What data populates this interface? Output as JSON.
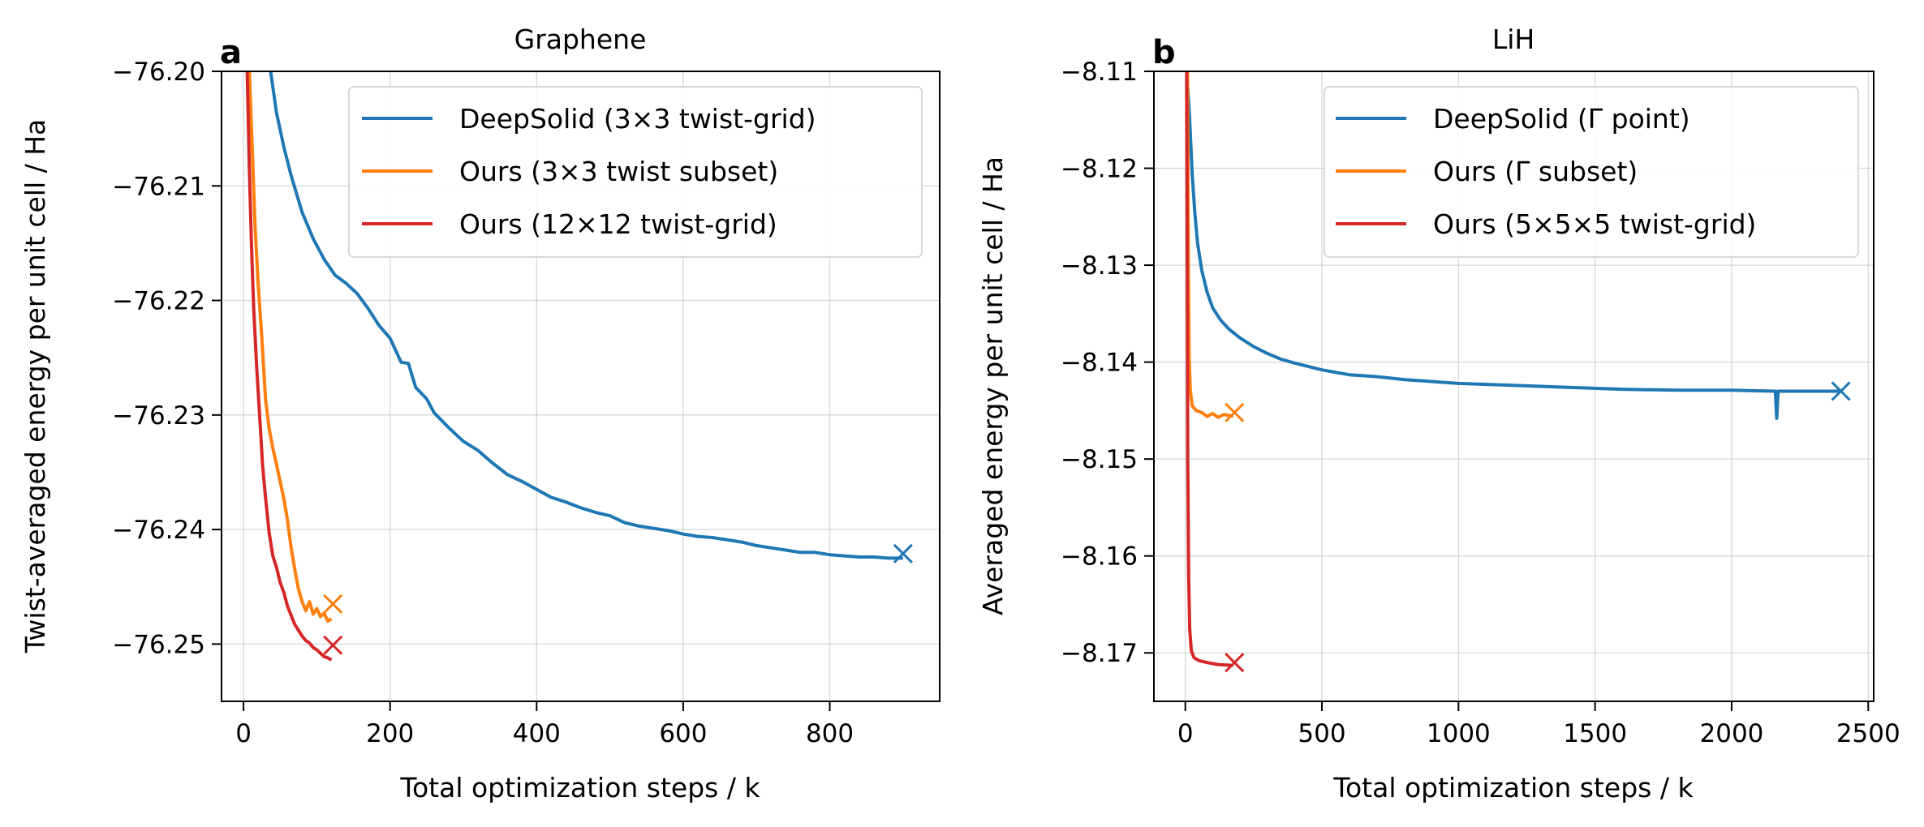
{
  "chart_data": [
    {
      "type": "line",
      "panel": "a",
      "title": "Graphene",
      "xlabel": "Total optimization steps / k",
      "ylabel": "Twist-averaged energy per unit cell / Ha",
      "xlim": [
        -30,
        950
      ],
      "ylim": [
        -76.255,
        -76.2
      ],
      "xticks": [
        0,
        200,
        400,
        600,
        800
      ],
      "xtick_labels": [
        "0",
        "200",
        "400",
        "600",
        "800"
      ],
      "yticks": [
        -76.25,
        -76.24,
        -76.23,
        -76.22,
        -76.21,
        -76.2
      ],
      "ytick_labels": [
        "−76.25",
        "−76.24",
        "−76.23",
        "−76.22",
        "−76.21",
        "−76.20"
      ],
      "grid": true,
      "legend_position": "top-right",
      "series": [
        {
          "name": "DeepSolid (3×3 twist-grid)",
          "color": "#1f77b4",
          "final_marker": {
            "x": 900,
            "y": -76.2421
          },
          "points": [
            [
              37,
              -76.2
            ],
            [
              45,
              -76.2036
            ],
            [
              55,
              -76.2066
            ],
            [
              65,
              -76.2091
            ],
            [
              80,
              -76.2123
            ],
            [
              95,
              -76.2146
            ],
            [
              110,
              -76.2164
            ],
            [
              125,
              -76.2178
            ],
            [
              140,
              -76.2185
            ],
            [
              155,
              -76.2194
            ],
            [
              170,
              -76.2207
            ],
            [
              185,
              -76.2222
            ],
            [
              200,
              -76.2233
            ],
            [
              215,
              -76.2254
            ],
            [
              225,
              -76.2255
            ],
            [
              235,
              -76.2276
            ],
            [
              250,
              -76.2286
            ],
            [
              260,
              -76.2298
            ],
            [
              280,
              -76.2311
            ],
            [
              300,
              -76.2323
            ],
            [
              320,
              -76.2331
            ],
            [
              340,
              -76.2342
            ],
            [
              360,
              -76.2352
            ],
            [
              380,
              -76.2358
            ],
            [
              400,
              -76.2365
            ],
            [
              420,
              -76.2372
            ],
            [
              440,
              -76.2376
            ],
            [
              460,
              -76.2381
            ],
            [
              480,
              -76.2385
            ],
            [
              500,
              -76.2388
            ],
            [
              520,
              -76.2394
            ],
            [
              540,
              -76.2397
            ],
            [
              560,
              -76.2399
            ],
            [
              580,
              -76.2401
            ],
            [
              600,
              -76.2404
            ],
            [
              620,
              -76.2406
            ],
            [
              640,
              -76.2407
            ],
            [
              660,
              -76.2409
            ],
            [
              680,
              -76.2411
            ],
            [
              700,
              -76.2414
            ],
            [
              720,
              -76.2416
            ],
            [
              740,
              -76.2418
            ],
            [
              760,
              -76.242
            ],
            [
              780,
              -76.242
            ],
            [
              800,
              -76.2422
            ],
            [
              820,
              -76.2423
            ],
            [
              840,
              -76.2424
            ],
            [
              860,
              -76.2424
            ],
            [
              880,
              -76.2425
            ],
            [
              900,
              -76.2425
            ]
          ]
        },
        {
          "name": "Ours (3×3 twist subset)",
          "color": "#ff7f0e",
          "final_marker": {
            "x": 122,
            "y": -76.2465
          },
          "points": [
            [
              8,
              -76.2
            ],
            [
              12,
              -76.2068
            ],
            [
              16,
              -76.2138
            ],
            [
              20,
              -76.2186
            ],
            [
              25,
              -76.2233
            ],
            [
              30,
              -76.2286
            ],
            [
              35,
              -76.2312
            ],
            [
              40,
              -76.2329
            ],
            [
              45,
              -76.2343
            ],
            [
              50,
              -76.2358
            ],
            [
              55,
              -76.2373
            ],
            [
              60,
              -76.2392
            ],
            [
              65,
              -76.2416
            ],
            [
              70,
              -76.2435
            ],
            [
              75,
              -76.2452
            ],
            [
              80,
              -76.2463
            ],
            [
              85,
              -76.2471
            ],
            [
              90,
              -76.2463
            ],
            [
              95,
              -76.2474
            ],
            [
              100,
              -76.2469
            ],
            [
              105,
              -76.2476
            ],
            [
              110,
              -76.2473
            ],
            [
              115,
              -76.248
            ],
            [
              120,
              -76.2478
            ]
          ]
        },
        {
          "name": "Ours (12×12 twist-grid)",
          "color": "#d62728",
          "final_marker": {
            "x": 122,
            "y": -76.2501
          },
          "points": [
            [
              5,
              -76.2
            ],
            [
              8,
              -76.2086
            ],
            [
              11,
              -76.2154
            ],
            [
              14,
              -76.2208
            ],
            [
              18,
              -76.2258
            ],
            [
              22,
              -76.2301
            ],
            [
              26,
              -76.2344
            ],
            [
              30,
              -76.2372
            ],
            [
              35,
              -76.2403
            ],
            [
              40,
              -76.2423
            ],
            [
              45,
              -76.2433
            ],
            [
              50,
              -76.2446
            ],
            [
              55,
              -76.2455
            ],
            [
              60,
              -76.2467
            ],
            [
              65,
              -76.2475
            ],
            [
              70,
              -76.2483
            ],
            [
              75,
              -76.2488
            ],
            [
              80,
              -76.2493
            ],
            [
              85,
              -76.2497
            ],
            [
              90,
              -76.2499
            ],
            [
              95,
              -76.2503
            ],
            [
              100,
              -76.2505
            ],
            [
              105,
              -76.2508
            ],
            [
              110,
              -76.2511
            ],
            [
              115,
              -76.2512
            ],
            [
              120,
              -76.2514
            ]
          ]
        }
      ]
    },
    {
      "type": "line",
      "panel": "b",
      "title": "LiH",
      "xlabel": "Total optimization steps / k",
      "ylabel": "Averaged energy per unit cell / Ha",
      "xlim": [
        -115,
        2520
      ],
      "ylim": [
        -8.175,
        -8.11
      ],
      "xticks": [
        0,
        500,
        1000,
        1500,
        2000,
        2500
      ],
      "xtick_labels": [
        "0",
        "500",
        "1000",
        "1500",
        "2000",
        "2500"
      ],
      "yticks": [
        -8.17,
        -8.16,
        -8.15,
        -8.14,
        -8.13,
        -8.12,
        -8.11
      ],
      "ytick_labels": [
        "−8.17",
        "−8.16",
        "−8.15",
        "−8.14",
        "−8.13",
        "−8.12",
        "−8.11"
      ],
      "grid": true,
      "legend_position": "top-right",
      "series": [
        {
          "name": "DeepSolid (Γ point)",
          "color": "#1f77b4",
          "final_marker": {
            "x": 2400,
            "y": -8.143
          },
          "points": [
            [
              5,
              -8.11
            ],
            [
              15,
              -8.1145
            ],
            [
              25,
              -8.1205
            ],
            [
              35,
              -8.1247
            ],
            [
              45,
              -8.1278
            ],
            [
              60,
              -8.1305
            ],
            [
              80,
              -8.1328
            ],
            [
              100,
              -8.1344
            ],
            [
              130,
              -8.1357
            ],
            [
              160,
              -8.1366
            ],
            [
              200,
              -8.1375
            ],
            [
              250,
              -8.1384
            ],
            [
              300,
              -8.1391
            ],
            [
              350,
              -8.1397
            ],
            [
              400,
              -8.1401
            ],
            [
              500,
              -8.1408
            ],
            [
              600,
              -8.1413
            ],
            [
              700,
              -8.1415
            ],
            [
              800,
              -8.1418
            ],
            [
              900,
              -8.142
            ],
            [
              1000,
              -8.1422
            ],
            [
              1200,
              -8.1424
            ],
            [
              1400,
              -8.1426
            ],
            [
              1600,
              -8.1428
            ],
            [
              1800,
              -8.1429
            ],
            [
              2000,
              -8.1429
            ],
            [
              2160,
              -8.143
            ],
            [
              2165,
              -8.1458
            ],
            [
              2170,
              -8.143
            ],
            [
              2250,
              -8.143
            ],
            [
              2400,
              -8.143
            ]
          ]
        },
        {
          "name": "Ours (Γ subset)",
          "color": "#ff7f0e",
          "final_marker": {
            "x": 180,
            "y": -8.1452
          },
          "points": [
            [
              8,
              -8.11
            ],
            [
              11,
              -8.13
            ],
            [
              14,
              -8.1395
            ],
            [
              18,
              -8.1428
            ],
            [
              25,
              -8.1445
            ],
            [
              40,
              -8.145
            ],
            [
              60,
              -8.1452
            ],
            [
              80,
              -8.1456
            ],
            [
              100,
              -8.1453
            ],
            [
              120,
              -8.1457
            ],
            [
              140,
              -8.1454
            ],
            [
              160,
              -8.1455
            ],
            [
              175,
              -8.1456
            ]
          ]
        },
        {
          "name": "Ours (5×5×5 twist-grid)",
          "color": "#d62728",
          "final_marker": {
            "x": 180,
            "y": -8.171
          },
          "points": [
            [
              5,
              -8.11
            ],
            [
              7,
              -8.13
            ],
            [
              9,
              -8.15
            ],
            [
              12,
              -8.162
            ],
            [
              16,
              -8.1675
            ],
            [
              22,
              -8.1698
            ],
            [
              32,
              -8.1705
            ],
            [
              50,
              -8.1708
            ],
            [
              80,
              -8.171
            ],
            [
              120,
              -8.1712
            ],
            [
              175,
              -8.1713
            ]
          ]
        }
      ]
    }
  ]
}
